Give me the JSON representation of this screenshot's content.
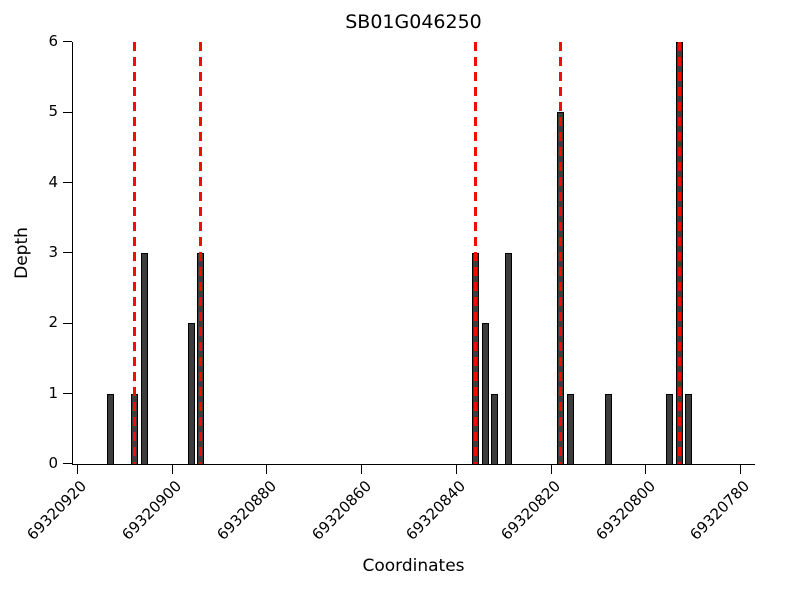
{
  "chart_data": {
    "type": "bar",
    "title": "SB01G046250",
    "xlabel": "Coordinates",
    "ylabel": "Depth",
    "ylim": [
      0,
      6
    ],
    "yticks": [
      0,
      1,
      2,
      3,
      4,
      5,
      6
    ],
    "x_axis": {
      "left_value": 69320921,
      "right_value": 69320777,
      "reversed": true,
      "tick_values": [
        69320920,
        69320900,
        69320880,
        69320860,
        69320840,
        69320820,
        69320800,
        69320780
      ]
    },
    "bars": [
      {
        "coordinate": 69320913,
        "depth": 1
      },
      {
        "coordinate": 69320908,
        "depth": 1
      },
      {
        "coordinate": 69320906,
        "depth": 3
      },
      {
        "coordinate": 69320896,
        "depth": 2
      },
      {
        "coordinate": 69320894,
        "depth": 3
      },
      {
        "coordinate": 69320836,
        "depth": 3
      },
      {
        "coordinate": 69320834,
        "depth": 2
      },
      {
        "coordinate": 69320832,
        "depth": 1
      },
      {
        "coordinate": 69320829,
        "depth": 3
      },
      {
        "coordinate": 69320818,
        "depth": 5
      },
      {
        "coordinate": 69320816,
        "depth": 1
      },
      {
        "coordinate": 69320808,
        "depth": 1
      },
      {
        "coordinate": 69320795,
        "depth": 1
      },
      {
        "coordinate": 69320793,
        "depth": 6
      },
      {
        "coordinate": 69320791,
        "depth": 1
      }
    ],
    "marker_lines": {
      "style": "dashed",
      "color": "#f10e00",
      "coordinates": [
        69320908,
        69320894,
        69320836,
        69320818,
        69320793
      ]
    },
    "bar_color": "#3c3c3c",
    "bar_edge_color": "#000000",
    "grid": false,
    "legend": "none"
  }
}
